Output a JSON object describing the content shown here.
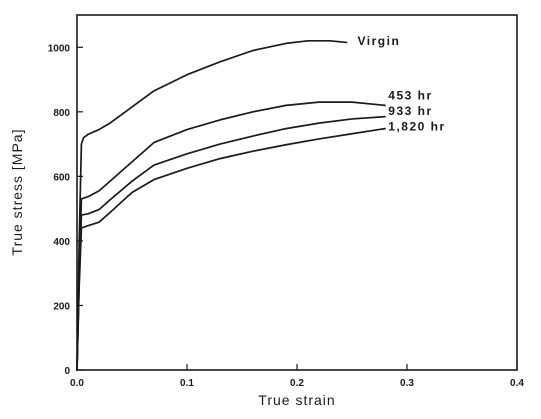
{
  "chart_data": {
    "type": "line",
    "title": "",
    "xlabel": "True strain",
    "ylabel": "True stress [MPa]",
    "xlim": [
      0.0,
      0.4
    ],
    "ylim": [
      0,
      1100
    ],
    "x_ticks": [
      0.0,
      0.1,
      0.2,
      0.3,
      0.4
    ],
    "x_tick_labels": [
      "0.0",
      "0.1",
      "0.2",
      "0.3",
      "0.4"
    ],
    "y_ticks": [
      0,
      200,
      400,
      600,
      800,
      1000
    ],
    "y_tick_labels": [
      "0",
      "200",
      "400",
      "600",
      "800",
      "1000"
    ],
    "grid": false,
    "legend": "none",
    "series": [
      {
        "name": "Virgin",
        "label_at": [
          0.255,
          1019
        ],
        "x": [
          0.0,
          0.002,
          0.004,
          0.006,
          0.01,
          0.02,
          0.03,
          0.05,
          0.07,
          0.1,
          0.13,
          0.16,
          0.19,
          0.21,
          0.23,
          0.245
        ],
        "y": [
          0,
          400,
          700,
          720,
          730,
          745,
          765,
          815,
          865,
          915,
          955,
          990,
          1012,
          1020,
          1020,
          1015
        ]
      },
      {
        "name": "453 hr",
        "label_at": [
          0.283,
          851
        ],
        "x": [
          0.0,
          0.002,
          0.004,
          0.01,
          0.02,
          0.03,
          0.05,
          0.07,
          0.1,
          0.13,
          0.16,
          0.19,
          0.22,
          0.25,
          0.28
        ],
        "y": [
          0,
          300,
          530,
          537,
          555,
          585,
          645,
          705,
          745,
          775,
          800,
          820,
          830,
          830,
          820
        ]
      },
      {
        "name": "933 hr",
        "label_at": [
          0.283,
          803
        ],
        "x": [
          0.0,
          0.002,
          0.004,
          0.01,
          0.02,
          0.03,
          0.05,
          0.07,
          0.1,
          0.13,
          0.16,
          0.19,
          0.22,
          0.25,
          0.28
        ],
        "y": [
          0,
          280,
          480,
          484,
          497,
          527,
          585,
          635,
          670,
          700,
          725,
          748,
          765,
          778,
          785
        ]
      },
      {
        "name": "1,820 hr",
        "label_at": [
          0.283,
          755
        ],
        "x": [
          0.0,
          0.002,
          0.004,
          0.01,
          0.02,
          0.03,
          0.05,
          0.07,
          0.1,
          0.13,
          0.16,
          0.19,
          0.22,
          0.25,
          0.28
        ],
        "y": [
          0,
          260,
          440,
          447,
          458,
          488,
          550,
          590,
          625,
          655,
          678,
          698,
          716,
          732,
          748
        ]
      }
    ]
  }
}
